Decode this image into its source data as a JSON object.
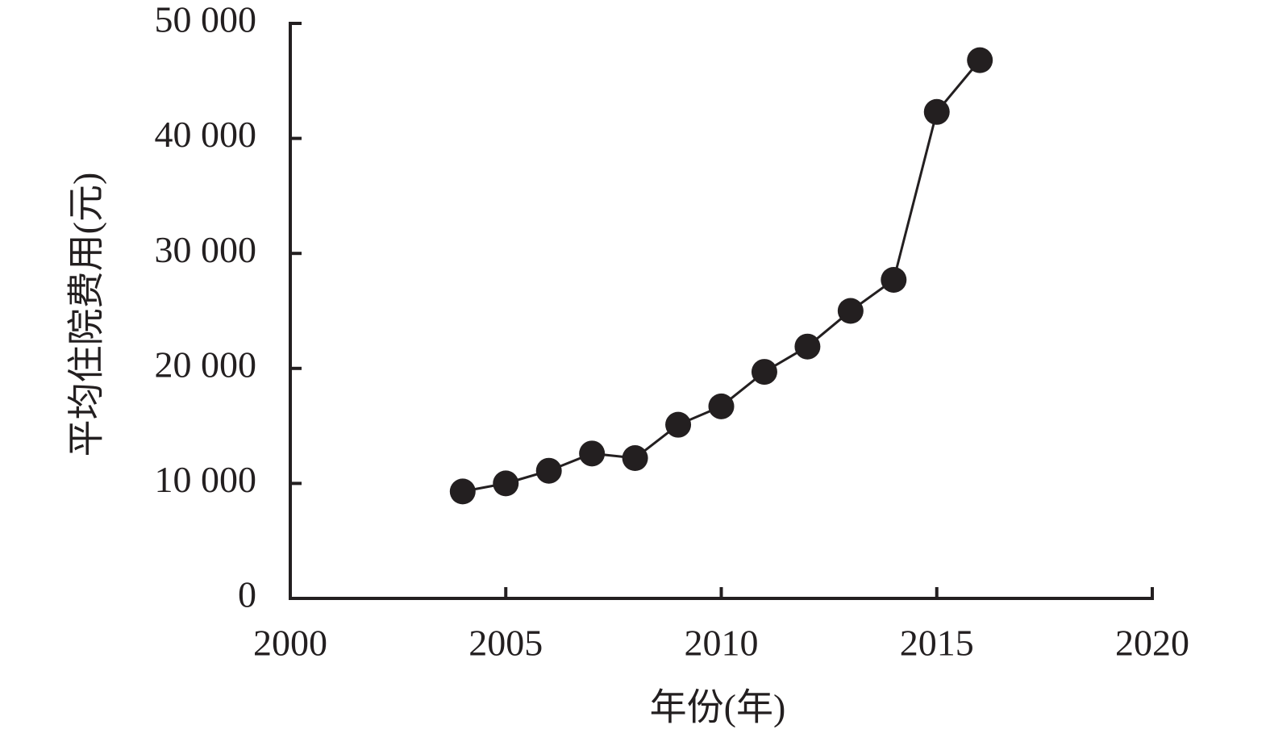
{
  "chart_data": {
    "type": "line",
    "x_label": "年份(年)",
    "y_label": "平均住院费用(元)",
    "x": [
      2004,
      2005,
      2006,
      2007,
      2008,
      2009,
      2010,
      2011,
      2012,
      2013,
      2014,
      2015,
      2016
    ],
    "series": [
      {
        "color": "#231f20",
        "values": [
          9300,
          10000,
          11100,
          12600,
          12200,
          15100,
          16700,
          19700,
          21900,
          25000,
          27700,
          42300,
          46800
        ]
      }
    ],
    "xlim": [
      2000,
      2020
    ],
    "xticks": [
      2000,
      2005,
      2010,
      2015,
      2020
    ],
    "ylim": [
      0,
      50000
    ],
    "yticks": [
      0,
      {
        "value": 10000,
        "label": "10 000"
      },
      {
        "value": 20000,
        "label": "20 000"
      },
      {
        "value": 30000,
        "label": "30 000"
      },
      {
        "value": 40000,
        "label": "40 000"
      },
      {
        "value": 50000,
        "label": "50 000"
      }
    ]
  }
}
